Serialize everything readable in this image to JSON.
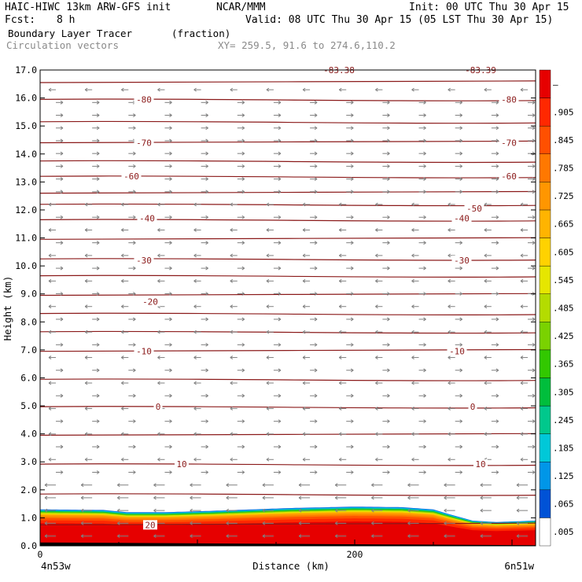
{
  "header": {
    "model_title": "HAIC-HIWC 13km ARW-GFS init",
    "org": "NCAR/MMM",
    "init": "Init: 00 UTC Thu 30 Apr 15",
    "fcst_label": "Fcst:",
    "fcst_value": "8 h",
    "valid": "Valid: 08 UTC Thu 30 Apr 15 (05 LST Thu 30 Apr 15)",
    "field_name": "Boundary Layer Tracer",
    "field_units": "(fraction)",
    "vectors_label": "Circulation vectors",
    "xy_label": "XY= 259.5, 91.6 to 274.6,110.2"
  },
  "chart_data": {
    "type": "heatmap",
    "xlabel": "Distance (km)",
    "ylabel": "Height (km)",
    "xlim": [
      0,
      315
    ],
    "ylim": [
      0,
      17
    ],
    "x_ticks": [
      0,
      200
    ],
    "x_end_labels": [
      "4n53w",
      "6n51w"
    ],
    "y_ticks": [
      "0.0",
      "1.0",
      "2.0",
      "3.0",
      "4.0",
      "5.0",
      "6.0",
      "7.0",
      "8.0",
      "9.0",
      "10.0",
      "11.0",
      "12.0",
      "13.0",
      "14.0",
      "15.0",
      "16.0",
      "17.0"
    ],
    "colorbar_labels": [
      ".005",
      ".065",
      ".125",
      ".185",
      ".245",
      ".305",
      ".365",
      ".425",
      ".485",
      ".545",
      ".605",
      ".665",
      ".725",
      ".785",
      ".845",
      ".905",
      "–"
    ],
    "colorbar_colors": [
      "#ffffff",
      "#0052d6",
      "#0096e8",
      "#00c8d8",
      "#00c88c",
      "#00be3c",
      "#32c800",
      "#7ad200",
      "#b4dc00",
      "#e6e600",
      "#ffd200",
      "#ffb400",
      "#ff9600",
      "#ff7800",
      "#ff5000",
      "#ff2800",
      "#e60000"
    ],
    "tracer_top_km": [
      [
        0,
        1.3
      ],
      [
        40,
        1.28
      ],
      [
        55,
        1.2
      ],
      [
        80,
        1.2
      ],
      [
        110,
        1.25
      ],
      [
        160,
        1.35
      ],
      [
        200,
        1.4
      ],
      [
        230,
        1.38
      ],
      [
        250,
        1.3
      ],
      [
        262,
        1.1
      ],
      [
        275,
        0.9
      ],
      [
        290,
        0.85
      ],
      [
        315,
        0.9
      ]
    ],
    "isotherms_c": [
      {
        "label": "20",
        "h": 0.75,
        "lx": [
          70
        ]
      },
      {
        "label": "10",
        "h": 2.92,
        "lx": [
          90,
          280
        ]
      },
      {
        "label": "0",
        "h": 4.97,
        "lx": [
          75,
          275
        ]
      },
      {
        "label": "-10",
        "h": 6.95,
        "lx": [
          66,
          265
        ]
      },
      {
        "label": "-20",
        "h": 8.72,
        "lx": [
          70
        ]
      },
      {
        "label": "-30",
        "h": 10.2,
        "lx": [
          66,
          268
        ]
      },
      {
        "label": "-40",
        "h": 11.7,
        "lx": [
          68,
          268
        ]
      },
      {
        "label": "-50",
        "h": 12.05,
        "lx": [
          276
        ]
      },
      {
        "label": "-60",
        "h": 13.2,
        "lx": [
          58,
          298
        ]
      },
      {
        "label": "-70",
        "h": 14.4,
        "lx": [
          66,
          298
        ]
      },
      {
        "label": "-80",
        "h": 15.95,
        "lx": [
          66,
          298
        ]
      },
      {
        "label": "-83.38",
        "h": 17.0,
        "lx": [
          190
        ]
      },
      {
        "label": "-83.39",
        "h": 17.0,
        "lx": [
          280
        ]
      }
    ],
    "contour_heights_km": [
      0.75,
      1.85,
      2.92,
      3.95,
      4.97,
      5.95,
      6.95,
      7.65,
      8.3,
      8.95,
      9.65,
      10.25,
      10.95,
      11.65,
      12.2,
      12.6,
      13.2,
      13.75,
      14.4,
      15.15,
      15.95,
      16.55
    ]
  }
}
